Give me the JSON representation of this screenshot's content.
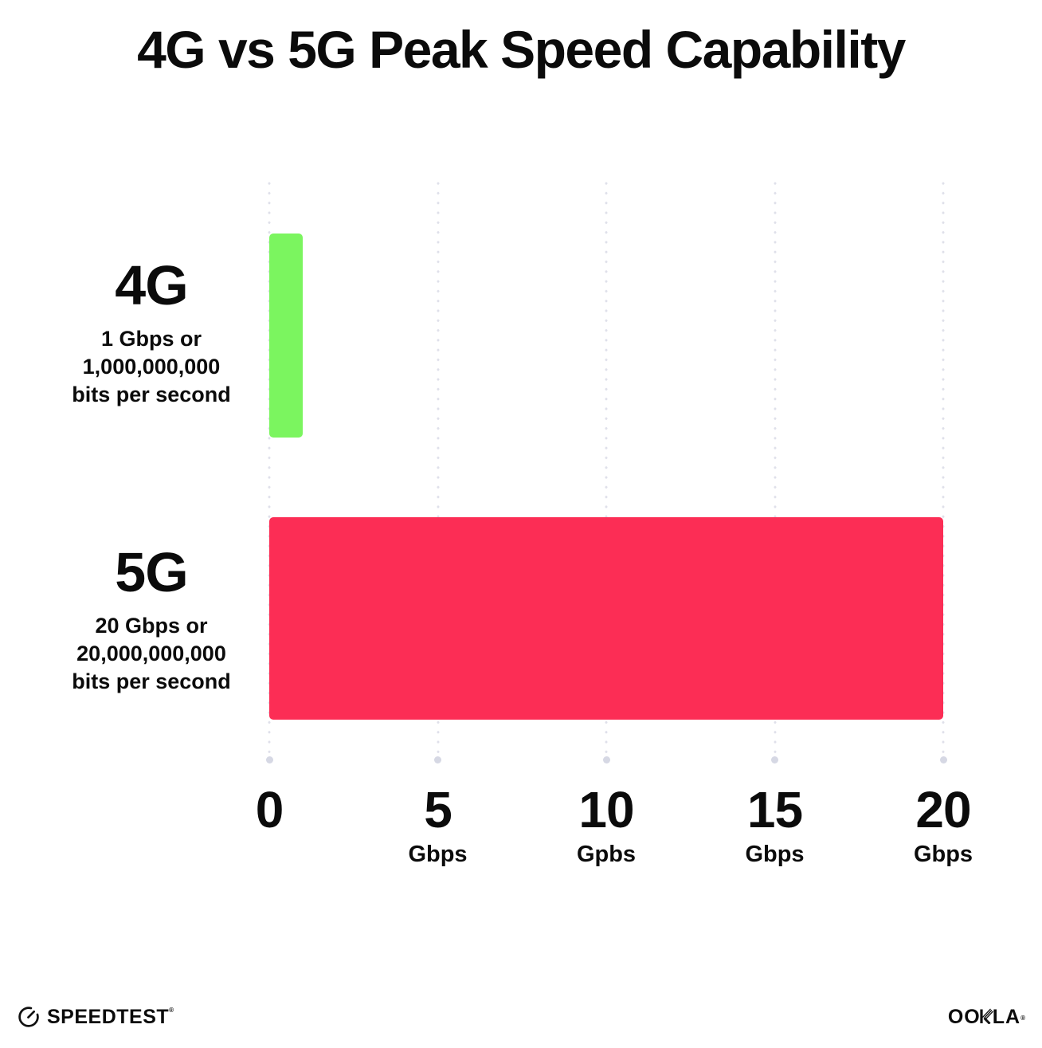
{
  "title": "4G vs 5G Peak Speed Capability",
  "colors": {
    "green": "#7BF55F",
    "red": "#FC2D55",
    "grid_dot": "#DFE0EA",
    "grid_dot_end": "#D6D8E4",
    "text": "#0B0B0B",
    "background": "#FFFFFF"
  },
  "chart_data": {
    "type": "bar",
    "orientation": "horizontal",
    "title": "4G vs 5G Peak Speed Capability",
    "categories": [
      "4G",
      "5G"
    ],
    "values": [
      1,
      20
    ],
    "xlabel": "Gbps",
    "ylabel": "",
    "xlim": [
      0,
      20
    ],
    "grid": "dotted-vertical-gridlines",
    "legend": "none",
    "rows": [
      {
        "label": "4G",
        "value": 1,
        "color": "#7BF55F",
        "sub_lines": [
          "1 Gbps or",
          "1,000,000,000",
          "bits per second"
        ]
      },
      {
        "label": "5G",
        "value": 20,
        "color": "#FC2D55",
        "sub_lines": [
          "20 Gbps or",
          "20,000,000,000",
          "bits per second"
        ]
      }
    ],
    "x_ticks": [
      {
        "value": "0",
        "unit": ""
      },
      {
        "value": "5",
        "unit": "Gbps"
      },
      {
        "value": "10",
        "unit": "Gpbs"
      },
      {
        "value": "15",
        "unit": "Gbps"
      },
      {
        "value": "20",
        "unit": "Gbps"
      }
    ]
  },
  "footer": {
    "speedtest_label": "SPEEDTEST",
    "speedtest_mark": "®",
    "ookla_left": "OO",
    "ookla_right": "LA",
    "ookla_mark": "®"
  }
}
